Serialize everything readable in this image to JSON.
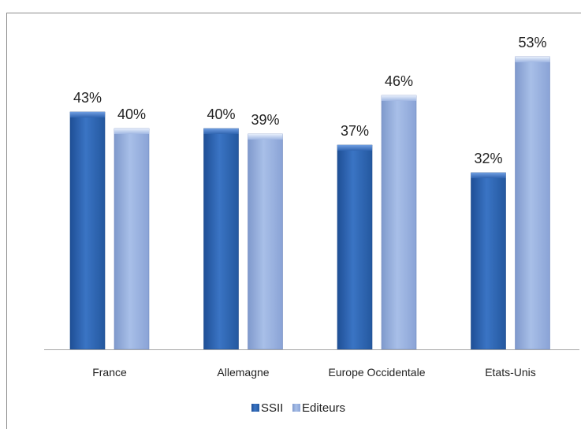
{
  "chart_data": {
    "type": "bar",
    "categories": [
      "France",
      "Allemagne",
      "Europe Occidentale",
      "Etats-Unis"
    ],
    "series": [
      {
        "name": "SSII",
        "values": [
          43,
          40,
          37,
          32
        ],
        "labels": [
          "43%",
          "40%",
          "37%",
          "32%"
        ],
        "color": "#2f64b0"
      },
      {
        "name": "Editeurs",
        "values": [
          40,
          39,
          46,
          53
        ],
        "labels": [
          "40%",
          "39%",
          "46%",
          "53%"
        ],
        "color": "#8fa9da"
      }
    ],
    "ylim": [
      0,
      70
    ],
    "grid": false,
    "legend_position": "bottom",
    "title": "",
    "xlabel": "",
    "ylabel": ""
  }
}
